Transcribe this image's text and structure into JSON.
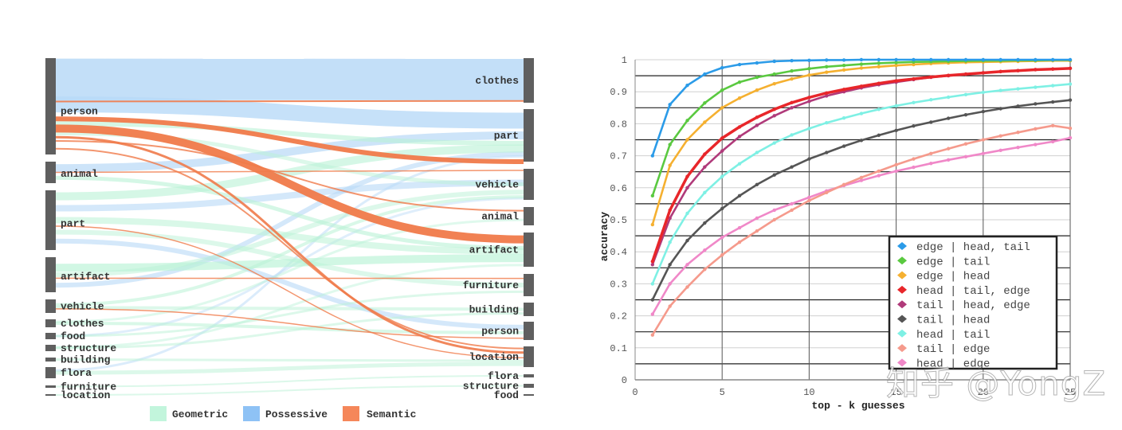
{
  "chart_data": [
    {
      "type": "sankey",
      "title": "",
      "left_nodes": [
        {
          "label": "person",
          "y0": 73,
          "y1": 194
        },
        {
          "label": "animal",
          "y0": 203,
          "y1": 230
        },
        {
          "label": "part",
          "y0": 239,
          "y1": 314
        },
        {
          "label": "artifact",
          "y0": 323,
          "y1": 367
        },
        {
          "label": "vehicle",
          "y0": 376,
          "y1": 393
        },
        {
          "label": "clothes",
          "y0": 401,
          "y1": 411
        },
        {
          "label": "food",
          "y0": 418,
          "y1": 426
        },
        {
          "label": "structure",
          "y0": 433,
          "y1": 441
        },
        {
          "label": "building",
          "y0": 449,
          "y1": 454
        },
        {
          "label": "flora",
          "y0": 461,
          "y1": 475
        },
        {
          "label": "furniture",
          "y0": 484,
          "y1": 487
        },
        {
          "label": "location",
          "y0": 495,
          "y1": 497
        }
      ],
      "right_nodes": [
        {
          "label": "clothes",
          "y0": 73,
          "y1": 129
        },
        {
          "label": "part",
          "y0": 137,
          "y1": 203
        },
        {
          "label": "vehicle",
          "y0": 212,
          "y1": 251
        },
        {
          "label": "animal",
          "y0": 260,
          "y1": 283
        },
        {
          "label": "artifact",
          "y0": 292,
          "y1": 335
        },
        {
          "label": "furniture",
          "y0": 344,
          "y1": 372
        },
        {
          "label": "building",
          "y0": 380,
          "y1": 397
        },
        {
          "label": "person",
          "y0": 404,
          "y1": 427
        },
        {
          "label": "location",
          "y0": 435,
          "y1": 461
        },
        {
          "label": "flora",
          "y0": 470,
          "y1": 474
        },
        {
          "label": "structure",
          "y0": 482,
          "y1": 487
        },
        {
          "label": "food",
          "y0": 495,
          "y1": 497
        }
      ],
      "legend": [
        {
          "label": "Geometric",
          "color": "#c2f5dc"
        },
        {
          "label": "Possessive",
          "color": "#8ec2f5"
        },
        {
          "label": "Semantic",
          "color": "#f5875a"
        }
      ]
    },
    {
      "type": "line",
      "title": "",
      "xlabel": "top - k guesses",
      "ylabel": "accuracy",
      "xlim": [
        0,
        25
      ],
      "ylim": [
        0,
        1
      ],
      "xticks": [
        "0",
        "5",
        "10",
        "15",
        "20",
        "25"
      ],
      "yticks": [
        "0",
        "0.1",
        "0.2",
        "0.3",
        "0.4",
        "0.5",
        "0.6",
        "0.7",
        "0.8",
        "0.9",
        "1"
      ],
      "grid": true,
      "legend_position": "lower right",
      "x": [
        1,
        2,
        3,
        4,
        5,
        6,
        7,
        8,
        9,
        10,
        11,
        12,
        13,
        14,
        15,
        16,
        17,
        18,
        19,
        20,
        21,
        22,
        23,
        24,
        25
      ],
      "series": [
        {
          "name": "edge | head, tail",
          "color": "#2b9be8",
          "values": [
            0.7,
            0.86,
            0.92,
            0.955,
            0.975,
            0.985,
            0.99,
            0.995,
            0.997,
            0.998,
            0.999,
            0.999,
            1,
            1,
            1,
            1,
            1,
            1,
            1,
            1,
            1,
            1,
            1,
            1,
            1
          ]
        },
        {
          "name": "edge | tail",
          "color": "#5ac940",
          "values": [
            0.575,
            0.735,
            0.81,
            0.865,
            0.905,
            0.93,
            0.945,
            0.955,
            0.965,
            0.972,
            0.978,
            0.982,
            0.986,
            0.989,
            0.991,
            0.993,
            0.994,
            0.995,
            0.996,
            0.997,
            0.997,
            0.998,
            0.998,
            0.999,
            0.999
          ]
        },
        {
          "name": "edge | head",
          "color": "#f5b030",
          "values": [
            0.485,
            0.67,
            0.75,
            0.805,
            0.85,
            0.88,
            0.905,
            0.925,
            0.94,
            0.952,
            0.961,
            0.968,
            0.974,
            0.978,
            0.982,
            0.985,
            0.988,
            0.99,
            0.992,
            0.993,
            0.994,
            0.995,
            0.996,
            0.997,
            0.997
          ]
        },
        {
          "name": "head | tail, edge",
          "color": "#e8262a",
          "values": [
            0.37,
            0.53,
            0.635,
            0.705,
            0.755,
            0.79,
            0.82,
            0.845,
            0.866,
            0.882,
            0.896,
            0.907,
            0.917,
            0.926,
            0.934,
            0.94,
            0.946,
            0.951,
            0.955,
            0.959,
            0.963,
            0.966,
            0.969,
            0.971,
            0.973
          ]
        },
        {
          "name": "tail | head, edge",
          "color": "#b03a7a",
          "values": [
            0.36,
            0.505,
            0.6,
            0.665,
            0.715,
            0.76,
            0.795,
            0.825,
            0.85,
            0.87,
            0.887,
            0.9,
            0.912,
            0.922,
            0.93,
            0.938,
            0.945,
            0.95,
            0.955,
            0.959,
            0.963,
            0.966,
            0.969,
            0.971,
            0.973
          ]
        },
        {
          "name": "tail | head",
          "color": "#555555",
          "values": [
            0.25,
            0.36,
            0.435,
            0.49,
            0.535,
            0.575,
            0.61,
            0.64,
            0.665,
            0.69,
            0.71,
            0.73,
            0.748,
            0.764,
            0.779,
            0.793,
            0.805,
            0.817,
            0.828,
            0.838,
            0.847,
            0.855,
            0.862,
            0.868,
            0.874
          ]
        },
        {
          "name": "head | tail",
          "color": "#7ef0e4",
          "values": [
            0.3,
            0.43,
            0.52,
            0.585,
            0.635,
            0.675,
            0.71,
            0.74,
            0.765,
            0.785,
            0.803,
            0.818,
            0.832,
            0.845,
            0.856,
            0.866,
            0.875,
            0.883,
            0.891,
            0.898,
            0.904,
            0.909,
            0.914,
            0.919,
            0.924
          ]
        },
        {
          "name": "tail | edge",
          "color": "#f59a8c",
          "values": [
            0.14,
            0.23,
            0.29,
            0.345,
            0.39,
            0.43,
            0.465,
            0.5,
            0.53,
            0.56,
            0.585,
            0.61,
            0.632,
            0.652,
            0.672,
            0.69,
            0.707,
            0.722,
            0.737,
            0.75,
            0.762,
            0.773,
            0.784,
            0.794,
            0.786
          ]
        },
        {
          "name": "head | edge",
          "color": "#f088c8",
          "values": [
            0.205,
            0.3,
            0.36,
            0.405,
            0.445,
            0.475,
            0.505,
            0.53,
            0.55,
            0.57,
            0.59,
            0.607,
            0.623,
            0.638,
            0.652,
            0.664,
            0.676,
            0.687,
            0.697,
            0.707,
            0.717,
            0.726,
            0.735,
            0.744,
            0.756
          ]
        }
      ]
    }
  ],
  "sankey": {
    "legend": {
      "geometric": "Geometric",
      "possessive": "Possessive",
      "semantic": "Semantic"
    }
  },
  "linechart": {
    "xlabel": "top - k guesses",
    "ylabel": "accuracy"
  },
  "watermark": "知乎 @YongZ"
}
